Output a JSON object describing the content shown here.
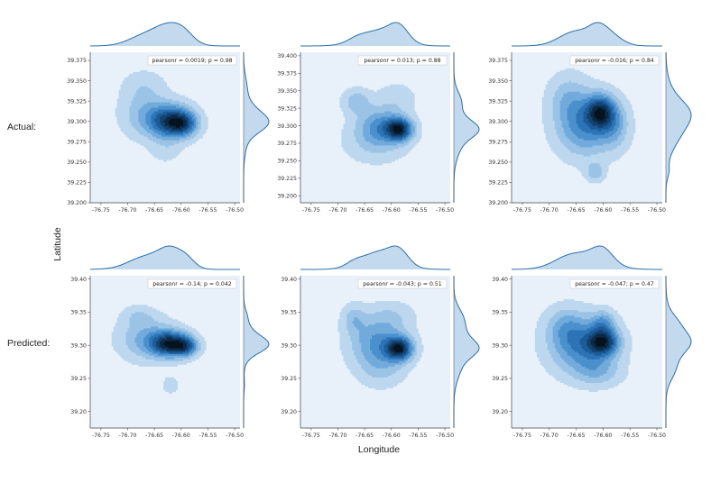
{
  "row_labels": [
    "Actual:",
    "Predicted:"
  ],
  "ylabel": "Latitude",
  "xlabel": "Longitude",
  "colors": {
    "background": "#e8f1fa",
    "kde_levels": [
      "#bcd7ee",
      "#9ac3e6",
      "#72abdb",
      "#4a90cc",
      "#2d74b6",
      "#1c5b99",
      "#13426f",
      "#0b2a47",
      "#06131f"
    ],
    "marginal_fill": "#c3d9ee",
    "marginal_line": "#2c6fa8"
  },
  "chart_data": [
    {
      "type": "heatmap",
      "title": "",
      "xlabel": "",
      "ylabel": "",
      "xlim": [
        -76.77,
        -76.49
      ],
      "ylim": [
        39.2,
        39.385
      ],
      "x_ticks": [
        "-76.75",
        "-76.70",
        "-76.65",
        "-76.60",
        "-76.55",
        "-76.50"
      ],
      "x_tick_values": [
        -76.75,
        -76.7,
        -76.65,
        -76.6,
        -76.55,
        -76.5
      ],
      "y_ticks": [
        "39.200",
        "39.225",
        "39.250",
        "39.275",
        "39.300",
        "39.325",
        "39.350",
        "39.375"
      ],
      "y_tick_values": [
        39.2,
        39.225,
        39.25,
        39.275,
        39.3,
        39.325,
        39.35,
        39.375
      ],
      "legend": "pearsonr = 0.0019; p = 0.98",
      "legend_position": "top-right",
      "density_components": [
        {
          "x": -76.62,
          "y": 39.3,
          "sx": 0.028,
          "sy": 0.014,
          "w": 1.0
        },
        {
          "x": -76.595,
          "y": 39.297,
          "sx": 0.018,
          "sy": 0.01,
          "w": 0.55
        },
        {
          "x": -76.67,
          "y": 39.31,
          "sx": 0.03,
          "sy": 0.02,
          "w": 0.3
        },
        {
          "x": -76.67,
          "y": 39.345,
          "sx": 0.028,
          "sy": 0.013,
          "w": 0.14
        },
        {
          "x": -76.63,
          "y": 39.265,
          "sx": 0.02,
          "sy": 0.012,
          "w": 0.12
        }
      ]
    },
    {
      "type": "heatmap",
      "title": "",
      "xlabel": "",
      "ylabel": "",
      "xlim": [
        -76.77,
        -76.49
      ],
      "ylim": [
        39.19,
        39.405
      ],
      "x_ticks": [
        "-76.75",
        "-76.70",
        "-76.65",
        "-76.60",
        "-76.55",
        "-76.50"
      ],
      "x_tick_values": [
        -76.75,
        -76.7,
        -76.65,
        -76.6,
        -76.55,
        -76.5
      ],
      "y_ticks": [
        "39.200",
        "39.225",
        "39.250",
        "39.275",
        "39.300",
        "39.325",
        "39.350",
        "39.375",
        "39.400"
      ],
      "y_tick_values": [
        39.2,
        39.225,
        39.25,
        39.275,
        39.3,
        39.325,
        39.35,
        39.375,
        39.4
      ],
      "legend": "pearsonr = 0.013; p = 0.88",
      "legend_position": "top-right",
      "density_components": [
        {
          "x": -76.585,
          "y": 39.295,
          "sx": 0.017,
          "sy": 0.011,
          "w": 1.0
        },
        {
          "x": -76.62,
          "y": 39.3,
          "sx": 0.03,
          "sy": 0.018,
          "w": 0.5
        },
        {
          "x": -76.665,
          "y": 39.335,
          "sx": 0.018,
          "sy": 0.012,
          "w": 0.3
        },
        {
          "x": -76.63,
          "y": 39.275,
          "sx": 0.04,
          "sy": 0.02,
          "w": 0.2
        },
        {
          "x": -76.59,
          "y": 39.34,
          "sx": 0.025,
          "sy": 0.015,
          "w": 0.15
        }
      ]
    },
    {
      "type": "heatmap",
      "title": "",
      "xlabel": "",
      "ylabel": "",
      "xlim": [
        -76.77,
        -76.49
      ],
      "ylim": [
        39.2,
        39.385
      ],
      "x_ticks": [
        "-76.75",
        "-76.70",
        "-76.65",
        "-76.60",
        "-76.55",
        "-76.50"
      ],
      "x_tick_values": [
        -76.75,
        -76.7,
        -76.65,
        -76.6,
        -76.55,
        -76.5
      ],
      "y_ticks": [
        "39.200",
        "39.225",
        "39.250",
        "39.275",
        "39.300",
        "39.325",
        "39.350",
        "39.375"
      ],
      "y_tick_values": [
        39.2,
        39.225,
        39.25,
        39.275,
        39.3,
        39.325,
        39.35,
        39.375
      ],
      "legend": "pearsonr = -0.016; p = 0.84",
      "legend_position": "top-right",
      "density_components": [
        {
          "x": -76.605,
          "y": 39.312,
          "sx": 0.018,
          "sy": 0.014,
          "w": 1.0
        },
        {
          "x": -76.635,
          "y": 39.295,
          "sx": 0.035,
          "sy": 0.025,
          "w": 0.7
        },
        {
          "x": -76.58,
          "y": 39.295,
          "sx": 0.02,
          "sy": 0.02,
          "w": 0.4
        },
        {
          "x": -76.615,
          "y": 39.238,
          "sx": 0.012,
          "sy": 0.008,
          "w": 0.35
        },
        {
          "x": -76.665,
          "y": 39.33,
          "sx": 0.025,
          "sy": 0.02,
          "w": 0.3
        }
      ]
    },
    {
      "type": "heatmap",
      "title": "",
      "xlabel": "",
      "ylabel": "",
      "xlim": [
        -76.77,
        -76.49
      ],
      "ylim": [
        39.175,
        39.405
      ],
      "x_ticks": [
        "-76.75",
        "-76.70",
        "-76.65",
        "-76.60",
        "-76.55",
        "-76.50"
      ],
      "x_tick_values": [
        -76.75,
        -76.7,
        -76.65,
        -76.6,
        -76.55,
        -76.5
      ],
      "y_ticks": [
        "39.20",
        "39.25",
        "39.30",
        "39.35",
        "39.40"
      ],
      "y_tick_values": [
        39.2,
        39.25,
        39.3,
        39.35,
        39.4
      ],
      "legend": "pearsonr = -0.14; p = 0.042",
      "legend_position": "top-right",
      "density_components": [
        {
          "x": -76.62,
          "y": 39.302,
          "sx": 0.025,
          "sy": 0.013,
          "w": 1.0
        },
        {
          "x": -76.59,
          "y": 39.298,
          "sx": 0.015,
          "sy": 0.01,
          "w": 0.5
        },
        {
          "x": -76.665,
          "y": 39.31,
          "sx": 0.035,
          "sy": 0.022,
          "w": 0.35
        },
        {
          "x": -76.68,
          "y": 39.345,
          "sx": 0.02,
          "sy": 0.01,
          "w": 0.15
        },
        {
          "x": -76.62,
          "y": 39.24,
          "sx": 0.012,
          "sy": 0.01,
          "w": 0.12
        }
      ]
    },
    {
      "type": "heatmap",
      "title": "",
      "xlabel": "",
      "ylabel": "",
      "xlim": [
        -76.77,
        -76.49
      ],
      "ylim": [
        39.175,
        39.405
      ],
      "x_ticks": [
        "-76.75",
        "-76.70",
        "-76.65",
        "-76.60",
        "-76.55",
        "-76.50"
      ],
      "x_tick_values": [
        -76.75,
        -76.7,
        -76.65,
        -76.6,
        -76.55,
        -76.5
      ],
      "y_ticks": [
        "39.20",
        "39.25",
        "39.30",
        "39.35",
        "39.40"
      ],
      "y_tick_values": [
        39.2,
        39.25,
        39.3,
        39.35,
        39.4
      ],
      "legend": "pearsonr = -0.043; p = 0.51",
      "legend_position": "top-right",
      "density_components": [
        {
          "x": -76.585,
          "y": 39.295,
          "sx": 0.017,
          "sy": 0.012,
          "w": 1.0
        },
        {
          "x": -76.625,
          "y": 39.305,
          "sx": 0.035,
          "sy": 0.025,
          "w": 0.5
        },
        {
          "x": -76.67,
          "y": 39.34,
          "sx": 0.015,
          "sy": 0.015,
          "w": 0.25
        },
        {
          "x": -76.62,
          "y": 39.265,
          "sx": 0.03,
          "sy": 0.02,
          "w": 0.2
        },
        {
          "x": -76.6,
          "y": 39.345,
          "sx": 0.03,
          "sy": 0.015,
          "w": 0.15
        }
      ]
    },
    {
      "type": "heatmap",
      "title": "",
      "xlabel": "",
      "ylabel": "",
      "xlim": [
        -76.77,
        -76.49
      ],
      "ylim": [
        39.175,
        39.405
      ],
      "x_ticks": [
        "-76.75",
        "-76.70",
        "-76.65",
        "-76.60",
        "-76.55",
        "-76.50"
      ],
      "x_tick_values": [
        -76.75,
        -76.7,
        -76.65,
        -76.6,
        -76.55,
        -76.5
      ],
      "y_ticks": [
        "39.20",
        "39.25",
        "39.30",
        "39.35",
        "39.40"
      ],
      "y_tick_values": [
        39.2,
        39.25,
        39.3,
        39.35,
        39.4
      ],
      "legend": "pearsonr = -0.047; p = 0.47",
      "legend_position": "top-right",
      "density_components": [
        {
          "x": -76.6,
          "y": 39.305,
          "sx": 0.02,
          "sy": 0.014,
          "w": 1.0
        },
        {
          "x": -76.64,
          "y": 39.3,
          "sx": 0.04,
          "sy": 0.028,
          "w": 0.7
        },
        {
          "x": -76.6,
          "y": 39.335,
          "sx": 0.015,
          "sy": 0.012,
          "w": 0.4
        },
        {
          "x": -76.61,
          "y": 39.26,
          "sx": 0.03,
          "sy": 0.015,
          "w": 0.3
        },
        {
          "x": -76.67,
          "y": 39.33,
          "sx": 0.025,
          "sy": 0.02,
          "w": 0.3
        }
      ]
    }
  ]
}
